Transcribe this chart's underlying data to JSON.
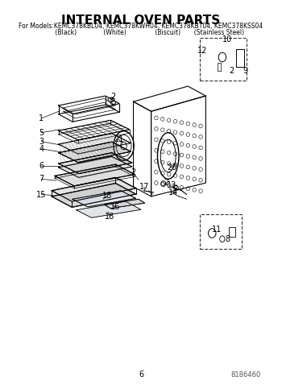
{
  "title": "INTERNAL OVEN PARTS",
  "subtitle_line1": "For Models:KEMC378KBL04, KEMC378KWH04, KEMC378KBT04, KEMC378KSS04",
  "subtitle_line2": "         (Black)              (White)               (Biscuit)       (Stainless Steel)",
  "page_number": "6",
  "part_number": "8186460",
  "bg_color": "#ffffff",
  "line_color": "#000000",
  "title_fontsize": 11,
  "subtitle_fontsize": 5.5,
  "label_fontsize": 7,
  "fig_width": 3.5,
  "fig_height": 4.83,
  "dpi": 100
}
